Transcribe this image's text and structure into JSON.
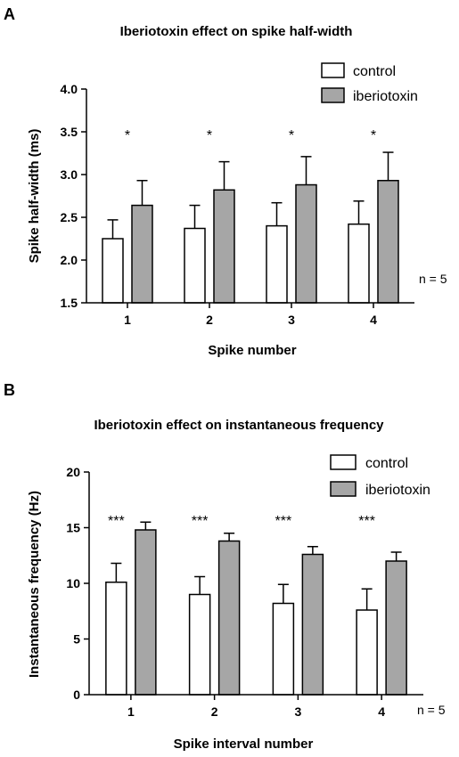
{
  "chart_data": [
    {
      "panel": "A",
      "type": "bar",
      "title": "Iberiotoxin effect on spike half-width",
      "xlabel": "Spike number",
      "ylabel": "Spike half-width (ms)",
      "categories": [
        "1",
        "2",
        "3",
        "4"
      ],
      "ylim": [
        1.5,
        4.0
      ],
      "yticks": [
        "1.5",
        "2.0",
        "2.5",
        "3.0",
        "3.5",
        "4.0"
      ],
      "series": [
        {
          "name": "control",
          "color": "#ffffff",
          "values": [
            2.25,
            2.37,
            2.4,
            2.42
          ],
          "errors": [
            0.22,
            0.27,
            0.27,
            0.27
          ]
        },
        {
          "name": "iberiotoxin",
          "color": "#a6a6a6",
          "values": [
            2.64,
            2.82,
            2.88,
            2.93
          ],
          "errors": [
            0.29,
            0.33,
            0.33,
            0.33
          ]
        }
      ],
      "significance": [
        "*",
        "*",
        "*",
        "*"
      ],
      "note": "n = 5",
      "legend_position": "top-right"
    },
    {
      "panel": "B",
      "type": "bar",
      "title": "Iberiotoxin effect on instantaneous frequency",
      "xlabel": "Spike interval number",
      "ylabel": "Instantaneous frequency (Hz)",
      "categories": [
        "1",
        "2",
        "3",
        "4"
      ],
      "ylim": [
        0,
        20
      ],
      "yticks": [
        "0",
        "5",
        "10",
        "15",
        "20"
      ],
      "series": [
        {
          "name": "control",
          "color": "#ffffff",
          "values": [
            10.1,
            9.0,
            8.2,
            7.6
          ],
          "errors": [
            1.7,
            1.6,
            1.7,
            1.9
          ]
        },
        {
          "name": "iberiotoxin",
          "color": "#a6a6a6",
          "values": [
            14.8,
            13.8,
            12.6,
            12.0
          ],
          "errors": [
            0.7,
            0.7,
            0.7,
            0.8
          ]
        }
      ],
      "significance": [
        "***",
        "***",
        "***",
        "***"
      ],
      "note": "n = 5",
      "legend_position": "top-right"
    }
  ]
}
